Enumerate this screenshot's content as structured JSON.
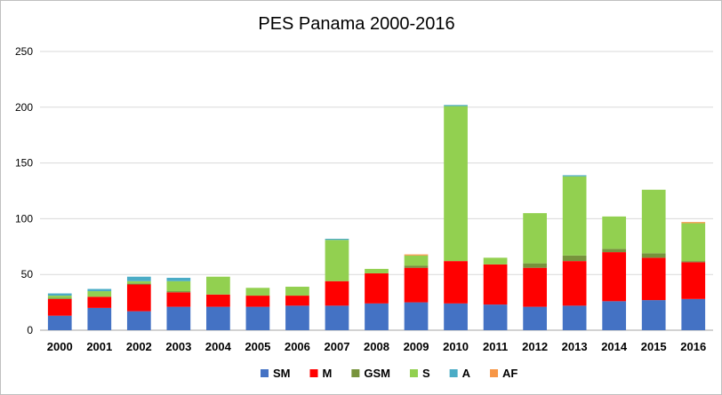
{
  "chart_data": {
    "type": "bar",
    "stacked": true,
    "title": "PES Panama 2000-2016",
    "xlabel": "",
    "ylabel": "",
    "ylim": [
      0,
      250
    ],
    "yticks": [
      0,
      50,
      100,
      150,
      200,
      250
    ],
    "grid": true,
    "legend": "bottom",
    "categories": [
      "2000",
      "2001",
      "2002",
      "2003",
      "2004",
      "2005",
      "2006",
      "2007",
      "2008",
      "2009",
      "2010",
      "2011",
      "2012",
      "2013",
      "2014",
      "2015",
      "2016"
    ],
    "series": [
      {
        "name": "SM",
        "color": "#4472c4",
        "values": [
          13,
          20,
          17,
          21,
          21,
          21,
          22,
          22,
          24,
          25,
          24,
          23,
          21,
          22,
          26,
          27,
          28
        ]
      },
      {
        "name": "M",
        "color": "#ff0000",
        "values": [
          15,
          10,
          24,
          13,
          11,
          10,
          9,
          22,
          27,
          31,
          38,
          36,
          35,
          40,
          44,
          38,
          33
        ]
      },
      {
        "name": "GSM",
        "color": "#77933c",
        "values": [
          1,
          0,
          1,
          1,
          0,
          0,
          0,
          0,
          0,
          2,
          0,
          0,
          4,
          5,
          3,
          4,
          1
        ]
      },
      {
        "name": "S",
        "color": "#92d050",
        "values": [
          2,
          5,
          2,
          9,
          16,
          7,
          8,
          37,
          4,
          9,
          139,
          6,
          45,
          71,
          29,
          57,
          34
        ]
      },
      {
        "name": "A",
        "color": "#4bacc6",
        "values": [
          2,
          2,
          4,
          3,
          0,
          0,
          0,
          1,
          0,
          0,
          1,
          0,
          0,
          1,
          0,
          0,
          0
        ]
      },
      {
        "name": "AF",
        "color": "#f79646",
        "values": [
          0,
          0,
          0,
          0,
          0,
          0,
          0,
          0,
          0,
          1,
          0,
          0,
          0,
          0,
          0,
          0,
          1
        ]
      }
    ]
  }
}
